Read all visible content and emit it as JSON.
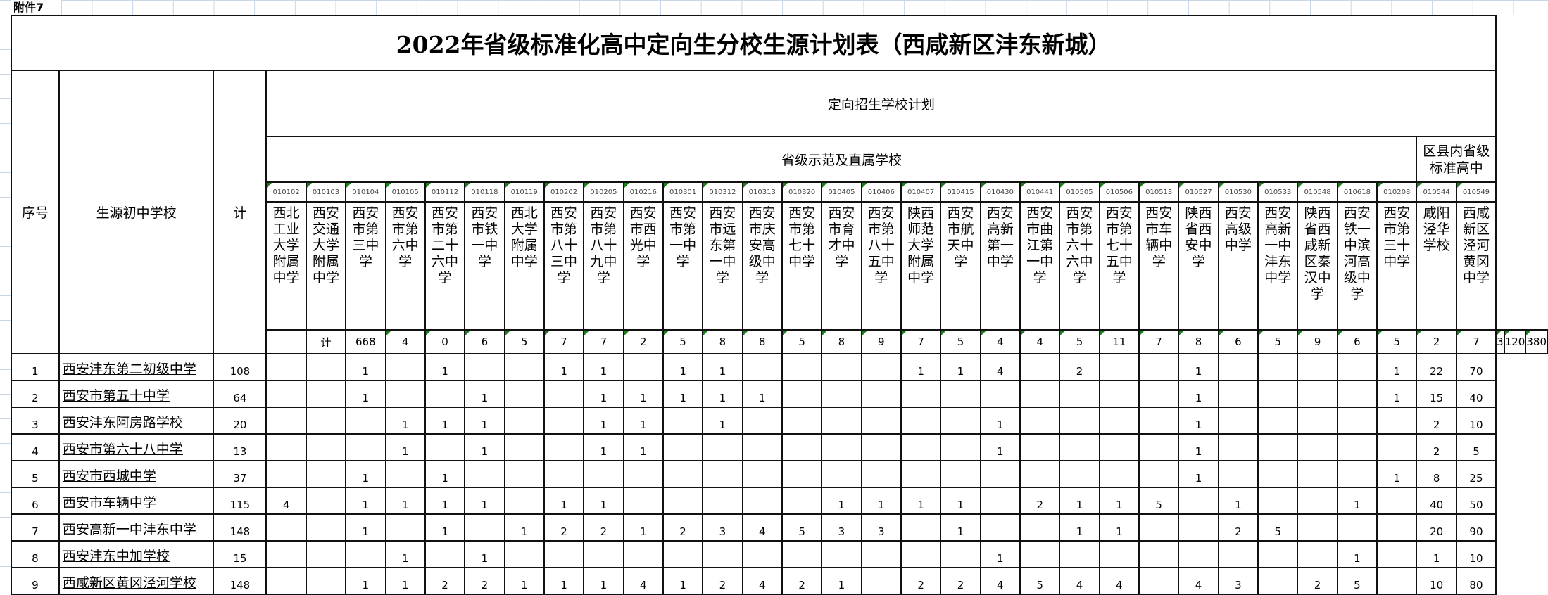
{
  "attachment_label": "附件7",
  "title": "2022年省级标准化高中定向生分校生源计划表（西咸新区沣东新城）",
  "headers": {
    "index": "序号",
    "source_school": "生源初中学校",
    "total": "计",
    "plan_group": "定向招生学校计划",
    "group_provincial": "省级示范及直属学校",
    "group_district": "区县内省级标准高中"
  },
  "target_schools": [
    {
      "code": "010102",
      "name": "西北工业大学附属中学"
    },
    {
      "code": "010103",
      "name": "西安交通大学附属中学"
    },
    {
      "code": "010104",
      "name": "西安市第三中学"
    },
    {
      "code": "010105",
      "name": "西安市第六中学"
    },
    {
      "code": "010112",
      "name": "西安市第二十六中学"
    },
    {
      "code": "010118",
      "name": "西安市铁一中学"
    },
    {
      "code": "010119",
      "name": "西北大学附属中学"
    },
    {
      "code": "010202",
      "name": "西安市第八十三中学"
    },
    {
      "code": "010205",
      "name": "西安市第八十九中学"
    },
    {
      "code": "010216",
      "name": "西安市西光中学"
    },
    {
      "code": "010301",
      "name": "西安市第一中学"
    },
    {
      "code": "010312",
      "name": "西安市远东第一中学"
    },
    {
      "code": "010313",
      "name": "西安市庆安高级中学"
    },
    {
      "code": "010320",
      "name": "西安市第七十中学"
    },
    {
      "code": "010405",
      "name": "西安市育才中学"
    },
    {
      "code": "010406",
      "name": "西安市第八十五中学"
    },
    {
      "code": "010407",
      "name": "陕西师范大学附属中学"
    },
    {
      "code": "010415",
      "name": "西安市航天中学"
    },
    {
      "code": "010430",
      "name": "西安高新第一中学"
    },
    {
      "code": "010441",
      "name": "西安市曲江第一中学"
    },
    {
      "code": "010505",
      "name": "西安市第六十六中学"
    },
    {
      "code": "010506",
      "name": "西安市第七十五中学"
    },
    {
      "code": "010513",
      "name": "西安市车辆中学"
    },
    {
      "code": "010527",
      "name": "陕西省西安中学"
    },
    {
      "code": "010530",
      "name": "西安高级中学"
    },
    {
      "code": "010533",
      "name": "西安高新一中沣东中学"
    },
    {
      "code": "010548",
      "name": "陕西省西咸新区秦汉中学"
    },
    {
      "code": "010618",
      "name": "西安铁一中滨河高级中学"
    },
    {
      "code": "010208",
      "name": "西安市第三十中学"
    },
    {
      "code": "010544",
      "name": "咸阳泾华学校"
    },
    {
      "code": "010549",
      "name": "西咸新区泾河黄冈中学"
    }
  ],
  "totals_row": {
    "label": "计",
    "total": "668",
    "values": [
      "4",
      "0",
      "6",
      "5",
      "7",
      "7",
      "2",
      "5",
      "8",
      "8",
      "5",
      "8",
      "9",
      "7",
      "5",
      "4",
      "4",
      "5",
      "11",
      "7",
      "8",
      "6",
      "5",
      "9",
      "6",
      "5",
      "2",
      "7",
      "3",
      "120",
      "380"
    ]
  },
  "rows": [
    {
      "index": "1",
      "school": "西安沣东第二初级中学",
      "total": "108",
      "values": [
        "",
        "",
        "1",
        "",
        "1",
        "",
        "",
        "1",
        "1",
        "",
        "1",
        "1",
        "",
        "",
        "",
        "",
        "1",
        "1",
        "4",
        "",
        "2",
        "",
        "",
        "1",
        "",
        "",
        "",
        "",
        "1",
        "22",
        "70"
      ]
    },
    {
      "index": "2",
      "school": "西安市第五十中学",
      "total": "64",
      "values": [
        "",
        "",
        "1",
        "",
        "",
        "1",
        "",
        "",
        "1",
        "1",
        "1",
        "1",
        "1",
        "",
        "",
        "",
        "",
        "",
        "",
        "",
        "",
        "",
        "",
        "1",
        "",
        "",
        "",
        "",
        "1",
        "15",
        "40"
      ]
    },
    {
      "index": "3",
      "school": "西安沣东阿房路学校",
      "total": "20",
      "values": [
        "",
        "",
        "",
        "1",
        "1",
        "1",
        "",
        "",
        "1",
        "1",
        "",
        "1",
        "",
        "",
        "",
        "",
        "",
        "",
        "1",
        "",
        "",
        "",
        "",
        "1",
        "",
        "",
        "",
        "",
        "",
        "2",
        "10"
      ]
    },
    {
      "index": "4",
      "school": "西安市第六十八中学",
      "total": "13",
      "values": [
        "",
        "",
        "",
        "1",
        "",
        "1",
        "",
        "",
        "1",
        "1",
        "",
        "",
        "",
        "",
        "",
        "",
        "",
        "",
        "1",
        "",
        "",
        "",
        "",
        "1",
        "",
        "",
        "",
        "",
        "",
        "2",
        "5"
      ]
    },
    {
      "index": "5",
      "school": "西安市西城中学",
      "total": "37",
      "values": [
        "",
        "",
        "1",
        "",
        "1",
        "",
        "",
        "",
        "",
        "",
        "",
        "",
        "",
        "",
        "",
        "",
        "",
        "",
        "",
        "",
        "",
        "",
        "",
        "1",
        "",
        "",
        "",
        "",
        "1",
        "8",
        "25"
      ]
    },
    {
      "index": "6",
      "school": "西安市车辆中学",
      "total": "115",
      "values": [
        "4",
        "",
        "1",
        "1",
        "1",
        "1",
        "",
        "1",
        "1",
        "",
        "",
        "",
        "",
        "",
        "1",
        "1",
        "1",
        "1",
        "",
        "2",
        "1",
        "1",
        "5",
        "",
        "1",
        "",
        "",
        "1",
        "",
        "40",
        "50"
      ]
    },
    {
      "index": "7",
      "school": "西安高新一中沣东中学",
      "total": "148",
      "values": [
        "",
        "",
        "1",
        "",
        "1",
        "",
        "1",
        "2",
        "2",
        "1",
        "2",
        "3",
        "4",
        "5",
        "3",
        "3",
        "",
        "1",
        "",
        "",
        "1",
        "1",
        "",
        "",
        "2",
        "5",
        "",
        "",
        "",
        "20",
        "90"
      ]
    },
    {
      "index": "8",
      "school": "西安沣东中加学校",
      "total": "15",
      "values": [
        "",
        "",
        "",
        "1",
        "",
        "1",
        "",
        "",
        "",
        "",
        "",
        "",
        "",
        "",
        "",
        "",
        "",
        "",
        "1",
        "",
        "",
        "",
        "",
        "",
        "",
        "",
        "",
        "1",
        "",
        "1",
        "10"
      ]
    },
    {
      "index": "9",
      "school": "西咸新区黄冈泾河学校",
      "total": "148",
      "values": [
        "",
        "",
        "1",
        "1",
        "2",
        "2",
        "1",
        "1",
        "1",
        "4",
        "1",
        "2",
        "4",
        "2",
        "1",
        "",
        "2",
        "2",
        "4",
        "5",
        "4",
        "4",
        "",
        "4",
        "3",
        "",
        "2",
        "5",
        "",
        "10",
        "80"
      ]
    }
  ],
  "colors": {
    "grid": "#c9d6ea",
    "border": "#111111",
    "comment_flag": "#1a7f1a"
  }
}
